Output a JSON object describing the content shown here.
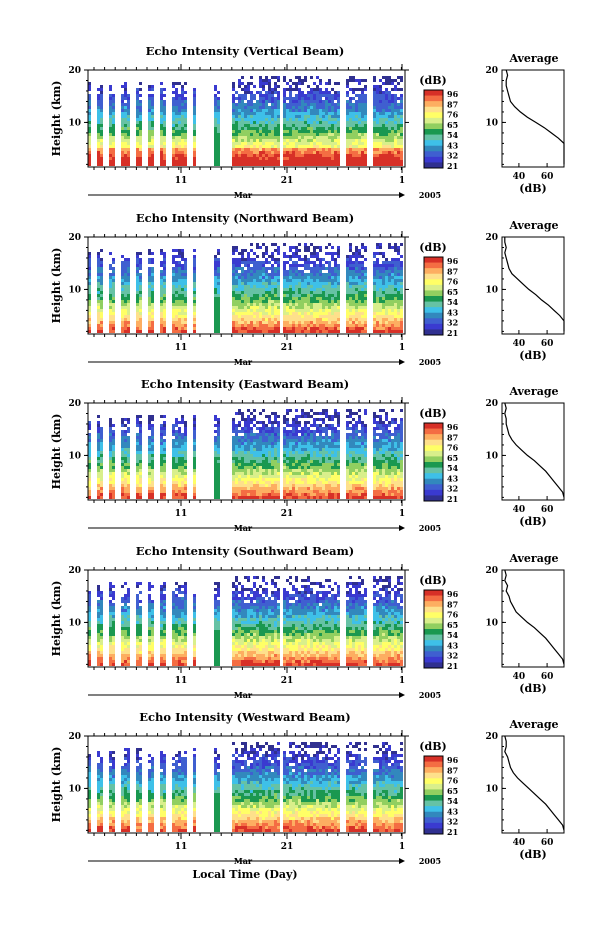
{
  "x_axis": {
    "label": "Local Time (Day)",
    "month_label": "Mar",
    "year_label": "2005",
    "tick_labels": [
      "11",
      "21",
      "1"
    ]
  },
  "colorbar": {
    "unit_label": "(dB)",
    "labels": [
      "96",
      "87",
      "76",
      "65",
      "54",
      "43",
      "32",
      "21"
    ],
    "colors": [
      "#d73027",
      "#f46d43",
      "#fdae61",
      "#fee08b",
      "#ffff66",
      "#d9ef8b",
      "#91cf60",
      "#1a9850",
      "#66c2a5",
      "#3ec0e8",
      "#3288bd",
      "#3f5fd0",
      "#3a3ad0",
      "#303090"
    ]
  },
  "average_label": "Average",
  "average_unit": "(dB)",
  "chart_data": [
    {
      "type": "heatmap",
      "title": "Echo Intensity (Vertical Beam)",
      "ylabel": "Height (km)",
      "yticks": [
        "20",
        "10"
      ],
      "ylim": [
        1.5,
        20
      ],
      "profile": {
        "type": "line",
        "title": "Average",
        "xlabel": "(dB)",
        "xticks": [
          "40",
          "60"
        ],
        "ylim": [
          1.5,
          20
        ],
        "heights": [
          20,
          19,
          18,
          17,
          16,
          15,
          14,
          13,
          12,
          11,
          10,
          9,
          8,
          7,
          6,
          5,
          4,
          3,
          2
        ],
        "values": [
          31,
          32,
          31,
          31,
          32,
          33,
          34,
          37,
          41,
          46,
          52,
          58,
          63,
          68,
          74,
          79,
          84,
          89,
          93
        ]
      }
    },
    {
      "type": "heatmap",
      "title": "Echo Intensity (Northward Beam)",
      "ylabel": "Height (km)",
      "yticks": [
        "20",
        "10"
      ],
      "ylim": [
        1.5,
        20
      ],
      "profile": {
        "type": "line",
        "title": "Average",
        "xlabel": "(dB)",
        "xticks": [
          "40",
          "60"
        ],
        "ylim": [
          1.5,
          20
        ],
        "heights": [
          20,
          19,
          18,
          17,
          16,
          15,
          14,
          13,
          12,
          11,
          10,
          9,
          8,
          7,
          6,
          5,
          4,
          3,
          2
        ],
        "values": [
          30,
          30,
          31,
          30,
          31,
          32,
          33,
          35,
          39,
          43,
          47,
          52,
          56,
          61,
          65,
          69,
          72,
          75,
          78
        ]
      }
    },
    {
      "type": "heatmap",
      "title": "Echo Intensity (Eastward Beam)",
      "ylabel": "Height (km)",
      "yticks": [
        "20",
        "10"
      ],
      "ylim": [
        1.5,
        20
      ],
      "profile": {
        "type": "line",
        "title": "Average",
        "xlabel": "(dB)",
        "xticks": [
          "40",
          "60"
        ],
        "ylim": [
          1.5,
          20
        ],
        "heights": [
          20,
          19,
          18,
          17,
          16,
          15,
          14,
          13,
          12,
          11,
          10,
          9,
          8,
          7,
          6,
          5,
          4,
          3,
          2
        ],
        "values": [
          30,
          31,
          30,
          31,
          31,
          32,
          33,
          35,
          38,
          42,
          46,
          51,
          55,
          59,
          62,
          65,
          68,
          71,
          73
        ]
      }
    },
    {
      "type": "heatmap",
      "title": "Echo Intensity (Southward Beam)",
      "ylabel": "Height (km)",
      "yticks": [
        "20",
        "10"
      ],
      "ylim": [
        1.5,
        20
      ],
      "profile": {
        "type": "line",
        "title": "Average",
        "xlabel": "(dB)",
        "xticks": [
          "40",
          "60"
        ],
        "ylim": [
          1.5,
          20
        ],
        "heights": [
          20,
          19,
          18,
          17,
          16,
          15,
          14,
          13,
          12,
          11,
          10,
          9,
          8,
          7,
          6,
          5,
          4,
          3,
          2
        ],
        "values": [
          30,
          31,
          30,
          32,
          31,
          33,
          34,
          36,
          38,
          42,
          46,
          51,
          55,
          59,
          62,
          65,
          68,
          71,
          74
        ]
      }
    },
    {
      "type": "heatmap",
      "title": "Echo Intensity (Westward Beam)",
      "ylabel": "Height (km)",
      "yticks": [
        "20",
        "10"
      ],
      "ylim": [
        1.5,
        20
      ],
      "profile": {
        "type": "line",
        "title": "Average",
        "xlabel": "(dB)",
        "xticks": [
          "40",
          "60"
        ],
        "ylim": [
          1.5,
          20
        ],
        "heights": [
          20,
          19,
          18,
          17,
          16,
          15,
          14,
          13,
          12,
          11,
          10,
          9,
          8,
          7,
          6,
          5,
          4,
          3,
          2
        ],
        "values": [
          30,
          31,
          31,
          30,
          32,
          33,
          34,
          36,
          39,
          43,
          47,
          51,
          55,
          59,
          62,
          65,
          68,
          71,
          74
        ]
      }
    }
  ]
}
